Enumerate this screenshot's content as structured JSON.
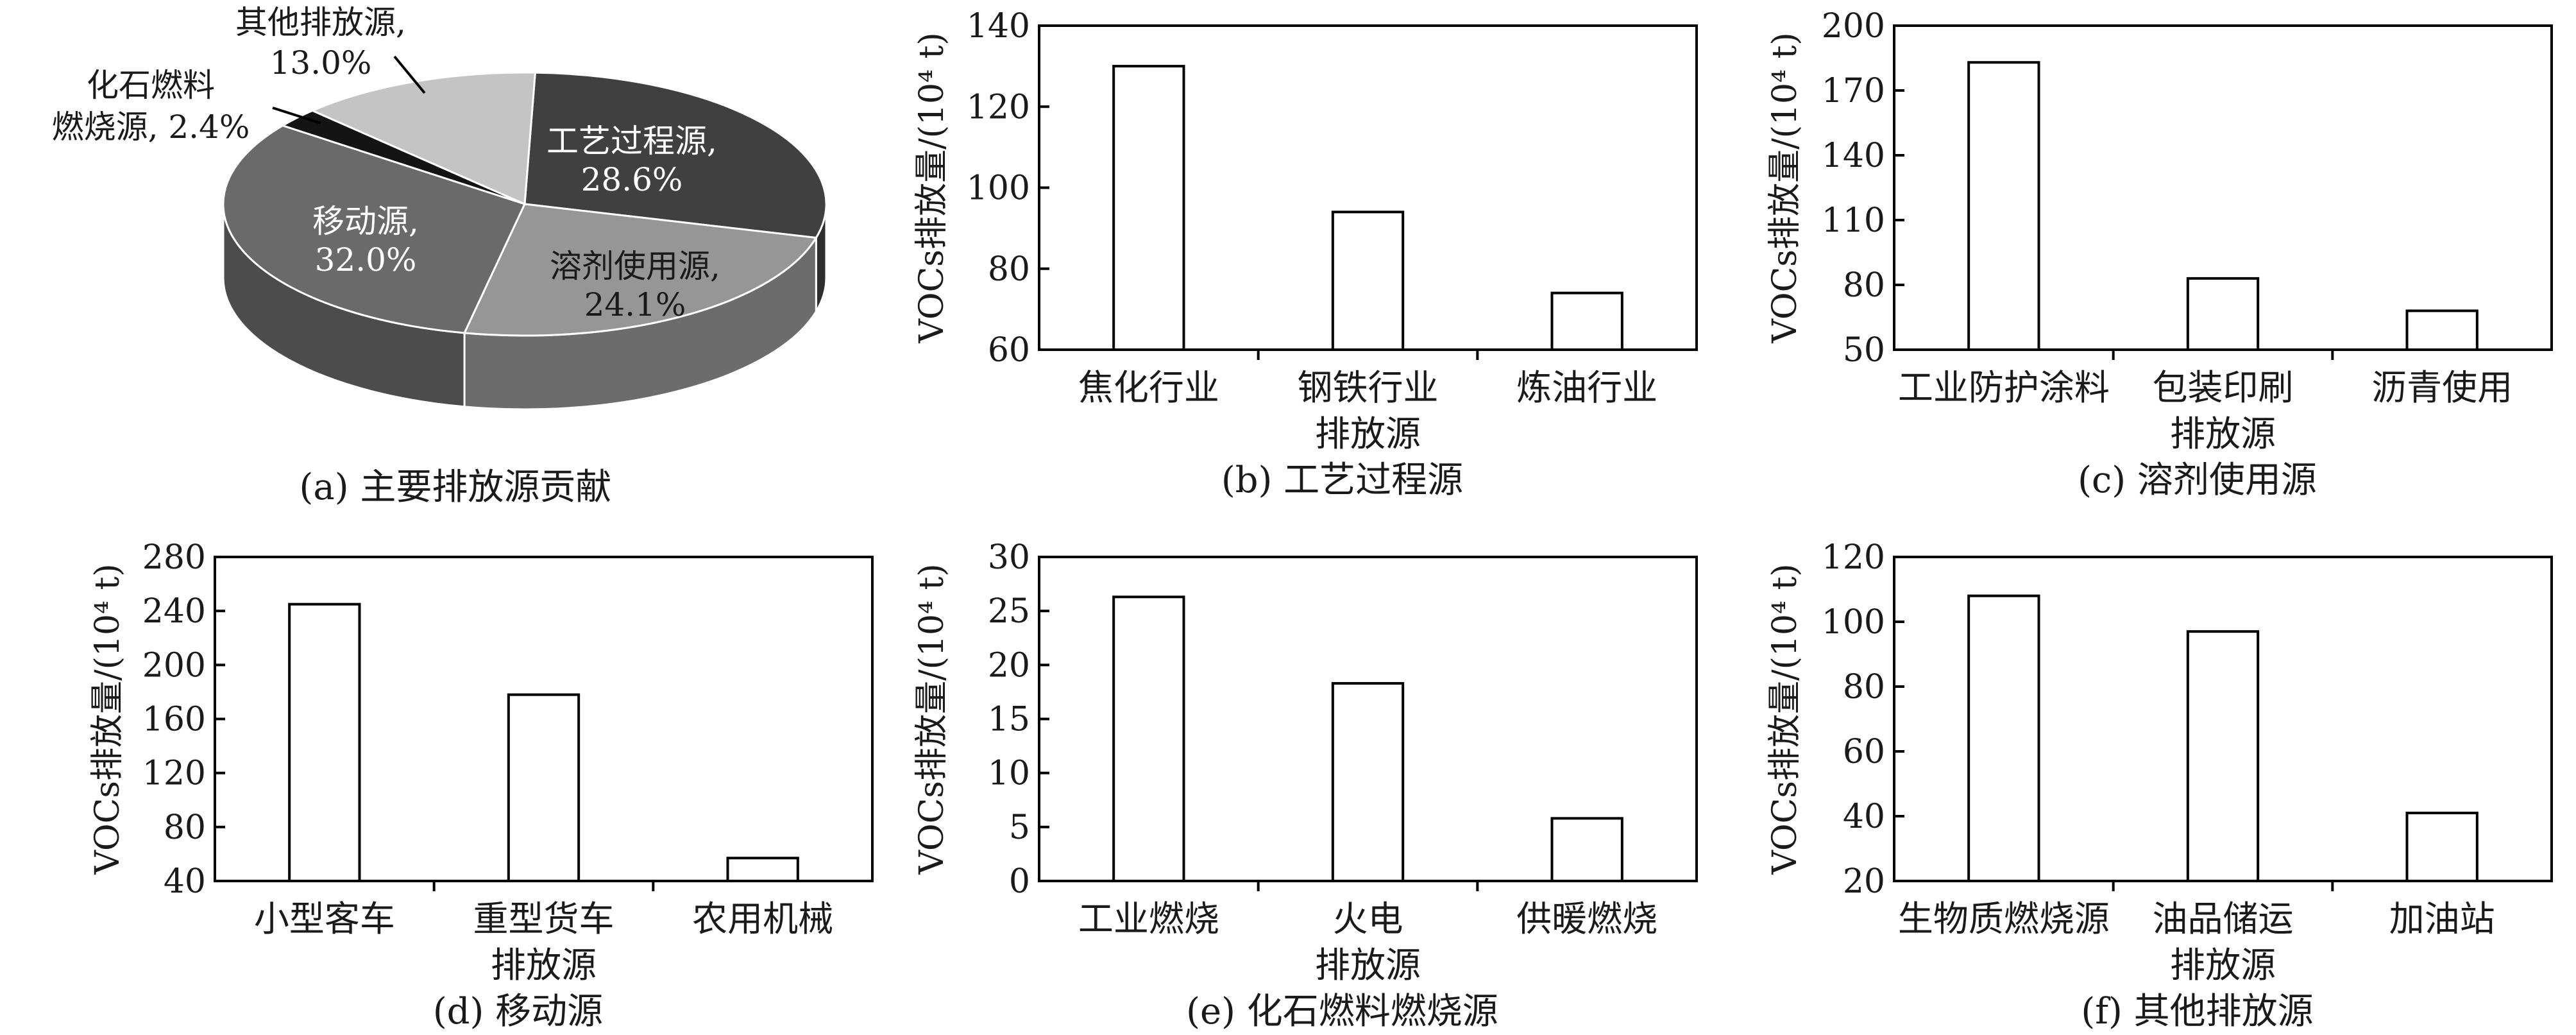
{
  "chart_data": [
    {
      "type": "pie",
      "caption": "(a) 主要排放源贡献",
      "slices": [
        {
          "label": "工艺过程源,",
          "pct_label": "28.6%",
          "value": 28.6,
          "color": "#404040"
        },
        {
          "label": "溶剂使用源,",
          "pct_label": "24.1%",
          "value": 24.1,
          "color": "#969696"
        },
        {
          "label": "移动源,",
          "pct_label": "32.0%",
          "value": 32.0,
          "color": "#6a6a6a"
        },
        {
          "label": "化石燃料燃烧源,",
          "pct_label": "2.4%",
          "value": 2.4,
          "color": "#141414"
        },
        {
          "label": "其他排放源,",
          "pct_label": "13.0%",
          "value": 13.0,
          "color": "#c4c4c4"
        }
      ],
      "annotations": {
        "fossil_line1": "化石燃料",
        "fossil_line2": "燃烧源, 2.4%",
        "other_line1": "其他排放源,",
        "other_line2": "13.0%"
      }
    },
    {
      "type": "bar",
      "caption": "(b) 工艺过程源",
      "ylabel": "VOCs排放量/(10⁴ t)",
      "xlabel": "排放源",
      "categories": [
        "焦化行业",
        "钢铁行业",
        "炼油行业"
      ],
      "values": [
        130,
        94,
        74
      ],
      "ylim": [
        60,
        140
      ],
      "yticks": [
        60,
        80,
        100,
        120,
        140
      ]
    },
    {
      "type": "bar",
      "caption": "(c) 溶剂使用源",
      "ylabel": "VOCs排放量/(10⁴ t)",
      "xlabel": "排放源",
      "categories": [
        "工业防护涂料",
        "包装印刷",
        "沥青使用"
      ],
      "values": [
        183,
        83,
        68
      ],
      "ylim": [
        50,
        200
      ],
      "yticks": [
        50,
        80,
        110,
        140,
        170,
        200
      ]
    },
    {
      "type": "bar",
      "caption": "(d) 移动源",
      "ylabel": "VOCs排放量/(10⁴ t)",
      "xlabel": "排放源",
      "categories": [
        "小型客车",
        "重型货车",
        "农用机械"
      ],
      "values": [
        245,
        178,
        57
      ],
      "ylim": [
        40,
        280
      ],
      "yticks": [
        40,
        80,
        120,
        160,
        200,
        240,
        280
      ]
    },
    {
      "type": "bar",
      "caption": "(e) 化石燃料燃烧源",
      "ylabel": "VOCs排放量/(10⁴ t)",
      "xlabel": "排放源",
      "categories": [
        "工业燃烧",
        "火电",
        "供暖燃烧"
      ],
      "values": [
        26.3,
        18.3,
        5.8
      ],
      "ylim": [
        0,
        30
      ],
      "yticks": [
        0,
        5,
        10,
        15,
        20,
        25,
        30
      ]
    },
    {
      "type": "bar",
      "caption": "(f) 其他排放源",
      "ylabel": "VOCs排放量/(10⁴ t)",
      "xlabel": "排放源",
      "categories": [
        "生物质燃烧源",
        "油品储运",
        "加油站"
      ],
      "values": [
        108,
        97,
        41
      ],
      "ylim": [
        20,
        120
      ],
      "yticks": [
        20,
        40,
        60,
        80,
        100,
        120
      ]
    }
  ]
}
